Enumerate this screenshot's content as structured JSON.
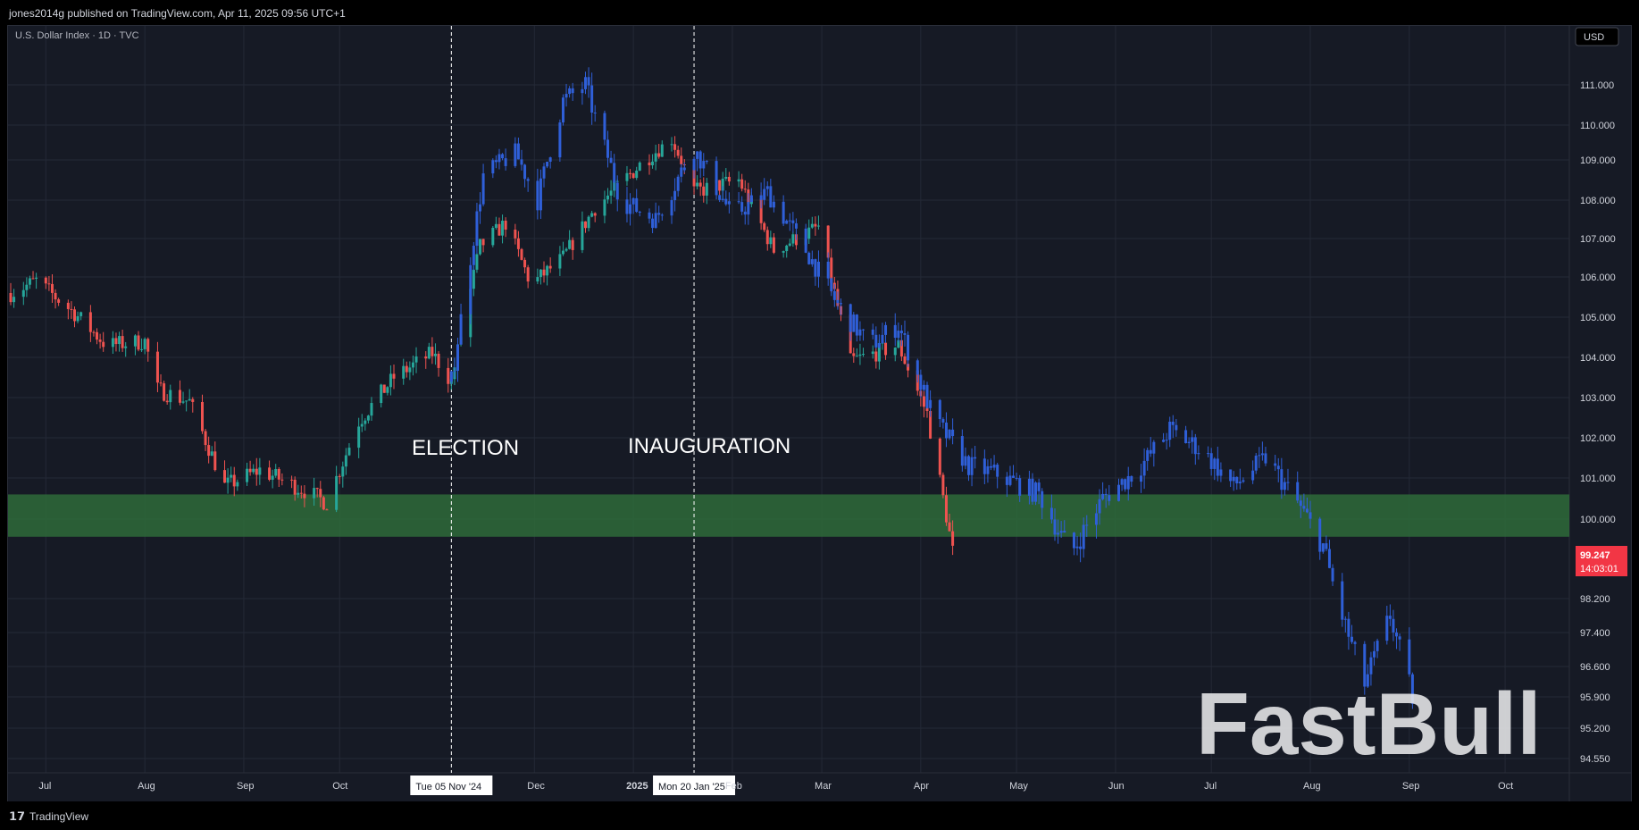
{
  "header": {
    "publisher": "jones2014g published on TradingView.com, Apr 11, 2025 09:56 UTC+1"
  },
  "footer": {
    "logo_glyph": "𝟭𝟳",
    "logo_text": "TradingView"
  },
  "watermark": "FastBull",
  "currency_button": "USD",
  "colors": {
    "background": "#161a25",
    "grid": "#242936",
    "up": "#26a69a",
    "down": "#ef5350",
    "projection": "#2f5fd8",
    "support_zone": "#2e6b3a",
    "price_tag": "#f23645",
    "text": "#d1d4dc"
  },
  "chart_data": {
    "type": "candlestick",
    "title": "U.S. Dollar Index · 1D · TVC",
    "currency": "USD",
    "x_labels": [
      "Jul",
      "Aug",
      "Sep",
      "Oct",
      "Dec",
      "2025",
      "Feb",
      "Mar",
      "Apr",
      "May",
      "Jun",
      "Jul",
      "Aug",
      "Sep",
      "Oct"
    ],
    "y_ticks": [
      "111.000",
      "110.000",
      "109.000",
      "108.000",
      "107.000",
      "106.000",
      "105.000",
      "104.000",
      "103.000",
      "102.000",
      "101.000",
      "100.000",
      "98.200",
      "97.400",
      "96.600",
      "95.900",
      "95.200",
      "94.550"
    ],
    "last_price": "99.247",
    "countdown": "14:03:01",
    "support_zone": [
      99.6,
      100.6
    ],
    "events": [
      {
        "label": "ELECTION",
        "date_label": "Tue 05 Nov '24"
      },
      {
        "label": "INAUGURATION",
        "date_label": "Mon 20 Jan '25"
      }
    ],
    "price_path": [
      {
        "date": "2024-06-20",
        "close": 105.6
      },
      {
        "date": "2024-06-28",
        "close": 105.9
      },
      {
        "date": "2024-07-10",
        "close": 105.1
      },
      {
        "date": "2024-07-20",
        "close": 104.3
      },
      {
        "date": "2024-08-01",
        "close": 104.4
      },
      {
        "date": "2024-08-05",
        "close": 103.2
      },
      {
        "date": "2024-08-15",
        "close": 102.9
      },
      {
        "date": "2024-08-26",
        "close": 100.8
      },
      {
        "date": "2024-09-06",
        "close": 101.2
      },
      {
        "date": "2024-09-20",
        "close": 100.7
      },
      {
        "date": "2024-09-27",
        "close": 100.4
      },
      {
        "date": "2024-10-07",
        "close": 102.4
      },
      {
        "date": "2024-10-18",
        "close": 103.5
      },
      {
        "date": "2024-10-30",
        "close": 104.1
      },
      {
        "date": "2024-11-05",
        "close": 103.4
      },
      {
        "date": "2024-11-14",
        "close": 106.8
      },
      {
        "date": "2024-11-22",
        "close": 107.4
      },
      {
        "date": "2024-11-30",
        "close": 105.8
      },
      {
        "date": "2024-12-10",
        "close": 106.5
      },
      {
        "date": "2024-12-20",
        "close": 107.8
      },
      {
        "date": "2025-01-02",
        "close": 108.8
      },
      {
        "date": "2025-01-13",
        "close": 109.6
      },
      {
        "date": "2025-01-20",
        "close": 108.2
      },
      {
        "date": "2025-02-03",
        "close": 108.5
      },
      {
        "date": "2025-02-14",
        "close": 106.7
      },
      {
        "date": "2025-02-28",
        "close": 107.3
      },
      {
        "date": "2025-03-10",
        "close": 103.9
      },
      {
        "date": "2025-03-25",
        "close": 104.3
      },
      {
        "date": "2025-04-03",
        "close": 102.6
      },
      {
        "date": "2025-04-11",
        "close": 99.25
      }
    ],
    "projection_path": [
      {
        "date": "2024-11-05",
        "close": 103.4
      },
      {
        "date": "2024-11-15",
        "close": 108.6
      },
      {
        "date": "2024-11-25",
        "close": 109.2
      },
      {
        "date": "2024-12-02",
        "close": 108.0
      },
      {
        "date": "2024-12-10",
        "close": 110.6
      },
      {
        "date": "2024-12-17",
        "close": 111.0
      },
      {
        "date": "2024-12-28",
        "close": 108.0
      },
      {
        "date": "2025-01-08",
        "close": 107.5
      },
      {
        "date": "2025-01-20",
        "close": 109.3
      },
      {
        "date": "2025-02-01",
        "close": 107.6
      },
      {
        "date": "2025-02-12",
        "close": 108.2
      },
      {
        "date": "2025-02-24",
        "close": 106.7
      },
      {
        "date": "2025-03-06",
        "close": 105.3
      },
      {
        "date": "2025-03-16",
        "close": 104.3
      },
      {
        "date": "2025-03-25",
        "close": 104.8
      },
      {
        "date": "2025-04-05",
        "close": 102.5
      },
      {
        "date": "2025-04-16",
        "close": 101.3
      },
      {
        "date": "2025-04-25",
        "close": 101.1
      },
      {
        "date": "2025-05-08",
        "close": 100.6
      },
      {
        "date": "2025-05-18",
        "close": 99.2
      },
      {
        "date": "2025-05-28",
        "close": 100.5
      },
      {
        "date": "2025-06-08",
        "close": 101.2
      },
      {
        "date": "2025-06-18",
        "close": 102.2
      },
      {
        "date": "2025-06-28",
        "close": 101.7
      },
      {
        "date": "2025-07-08",
        "close": 100.8
      },
      {
        "date": "2025-07-18",
        "close": 101.5
      },
      {
        "date": "2025-07-28",
        "close": 100.4
      },
      {
        "date": "2025-08-05",
        "close": 99.4
      },
      {
        "date": "2025-08-10",
        "close": 98.0
      },
      {
        "date": "2025-08-18",
        "close": 96.2
      },
      {
        "date": "2025-08-26",
        "close": 97.8
      },
      {
        "date": "2025-09-02",
        "close": 95.9
      }
    ]
  }
}
